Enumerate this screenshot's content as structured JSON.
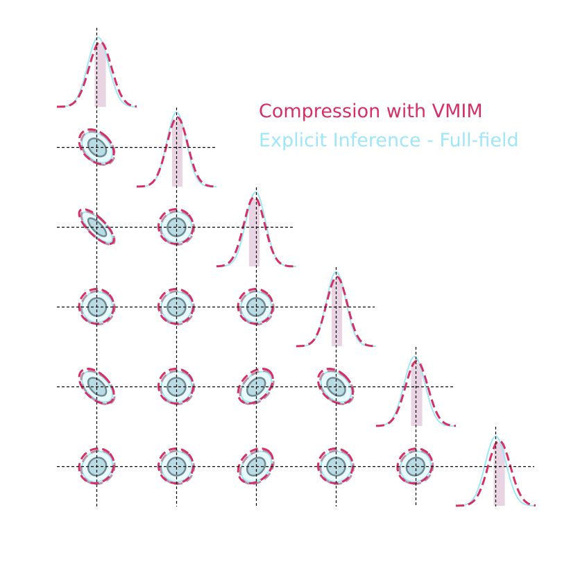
{
  "chart_data": {
    "type": "corner",
    "n_params": 6,
    "fiducial": [
      0,
      0,
      0,
      0,
      0,
      0
    ],
    "legend": [
      {
        "label": "Compression with VMIM",
        "color": "#d62f64",
        "style": "dashed"
      },
      {
        "label": "Explicit Inference - Full-field",
        "color": "#9ee6f8",
        "style": "solid"
      }
    ],
    "colors": {
      "vmim": "#d62f64",
      "vmim_outer": "#b794a8",
      "explicit": "#9ee6f8",
      "explicit_fill": "#e9fafd",
      "core_fill": "#b9dbe3",
      "core_edge": "#6f8a94",
      "band": "#e1c6da",
      "crosshair": "#000000"
    },
    "marginals": [
      {
        "param": 1,
        "vmim": {
          "mean": 0.05,
          "sigma": 0.16
        },
        "explicit": {
          "mean": 0.02,
          "sigma": 0.15
        }
      },
      {
        "param": 2,
        "vmim": {
          "mean": 0.01,
          "sigma": 0.15
        },
        "explicit": {
          "mean": 0.0,
          "sigma": 0.14
        }
      },
      {
        "param": 3,
        "vmim": {
          "mean": -0.03,
          "sigma": 0.15
        },
        "explicit": {
          "mean": -0.01,
          "sigma": 0.14
        }
      },
      {
        "param": 4,
        "vmim": {
          "mean": 0.01,
          "sigma": 0.15
        },
        "explicit": {
          "mean": 0.0,
          "sigma": 0.14
        }
      },
      {
        "param": 5,
        "vmim": {
          "mean": 0.01,
          "sigma": 0.16
        },
        "explicit": {
          "mean": -0.02,
          "sigma": 0.15
        }
      },
      {
        "param": 6,
        "vmim": {
          "mean": 0.05,
          "sigma": 0.16
        },
        "explicit": {
          "mean": 0.0,
          "sigma": 0.15
        }
      }
    ],
    "pairs": [
      {
        "x": 1,
        "y": 2,
        "rho": -0.35
      },
      {
        "x": 1,
        "y": 3,
        "rho": -0.75
      },
      {
        "x": 2,
        "y": 3,
        "rho": 0.0
      },
      {
        "x": 1,
        "y": 4,
        "rho": 0.0
      },
      {
        "x": 2,
        "y": 4,
        "rho": 0.0
      },
      {
        "x": 3,
        "y": 4,
        "rho": 0.0
      },
      {
        "x": 1,
        "y": 5,
        "rho": -0.5
      },
      {
        "x": 2,
        "y": 5,
        "rho": 0.0
      },
      {
        "x": 3,
        "y": 5,
        "rho": 0.4
      },
      {
        "x": 4,
        "y": 5,
        "rho": -0.35
      },
      {
        "x": 1,
        "y": 6,
        "rho": 0.1
      },
      {
        "x": 2,
        "y": 6,
        "rho": 0.0
      },
      {
        "x": 3,
        "y": 6,
        "rho": 0.3
      },
      {
        "x": 4,
        "y": 6,
        "rho": 0.0
      },
      {
        "x": 5,
        "y": 6,
        "rho": 0.1
      }
    ]
  }
}
